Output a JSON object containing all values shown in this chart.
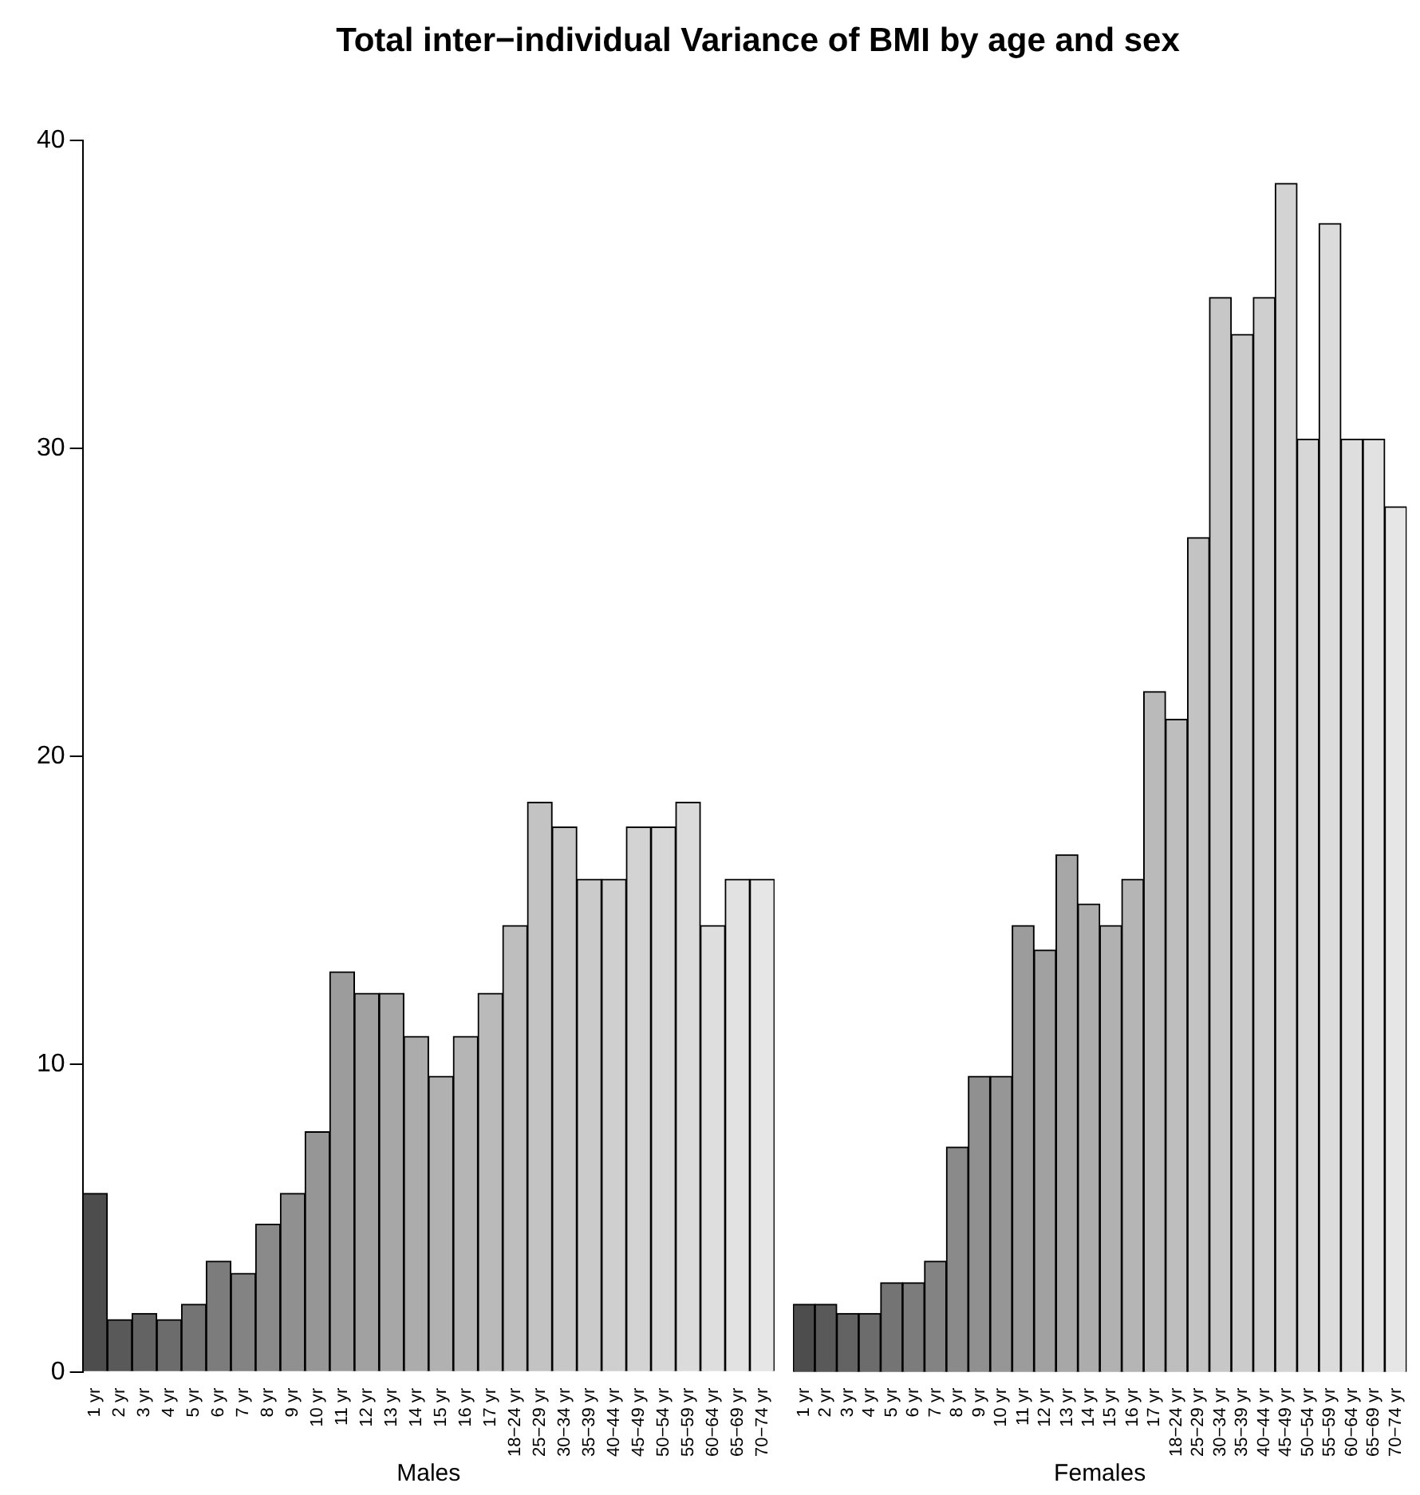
{
  "chart_data": [
    {
      "type": "bar",
      "title": "Total inter−individual Variance of BMI by age and sex",
      "xlabel": "Males",
      "categories": [
        "1 yr",
        "2 yr",
        "3 yr",
        "4 yr",
        "5 yr",
        "6 yr",
        "7 yr",
        "8 yr",
        "9 yr",
        "10 yr",
        "11 yr",
        "12 yr",
        "13 yr",
        "14 yr",
        "15 yr",
        "16 yr",
        "17 yr",
        "18−24 yr",
        "25−29 yr",
        "30−34 yr",
        "35−39 yr",
        "40−44 yr",
        "45−49 yr",
        "50−54 yr",
        "55−59 yr",
        "60−64 yr",
        "65−69 yr",
        "70−74 yr"
      ],
      "values": [
        5.8,
        1.7,
        1.9,
        1.7,
        2.2,
        3.6,
        3.2,
        4.8,
        5.8,
        7.8,
        13.0,
        12.3,
        12.3,
        10.9,
        9.6,
        10.9,
        12.3,
        14.5,
        18.5,
        17.7,
        16.0,
        16.0,
        17.7,
        17.7,
        18.5,
        14.5,
        16.0,
        16.0
      ],
      "colors": [
        "#4d4d4d",
        "#595959",
        "#636363",
        "#6c6c6c",
        "#747474",
        "#7c7c7c",
        "#838383",
        "#8a8a8a",
        "#909090",
        "#969696",
        "#9c9c9c",
        "#a1a1a1",
        "#a7a7a7",
        "#acacac",
        "#b1b1b1",
        "#b5b5b5",
        "#bababa",
        "#bebebe",
        "#c3c3c3",
        "#c7c7c7",
        "#cbcbcb",
        "#cfcfcf",
        "#d3d3d3",
        "#d7d7d7",
        "#dbdbdb",
        "#dedede",
        "#e2e2e2",
        "#e6e6e6"
      ],
      "ylim": [
        0,
        40
      ],
      "yticks": [
        0,
        10,
        20,
        30,
        40
      ]
    },
    {
      "type": "bar",
      "xlabel": "Females",
      "categories": [
        "1 yr",
        "2 yr",
        "3 yr",
        "4 yr",
        "5 yr",
        "6 yr",
        "7 yr",
        "8 yr",
        "9 yr",
        "10 yr",
        "11 yr",
        "12 yr",
        "13 yr",
        "14 yr",
        "15 yr",
        "16 yr",
        "17 yr",
        "18−24 yr",
        "25−29 yr",
        "30−34 yr",
        "35−39 yr",
        "40−44 yr",
        "45−49 yr",
        "50−54 yr",
        "55−59 yr",
        "60−64 yr",
        "65−69 yr",
        "70−74 yr"
      ],
      "values": [
        2.2,
        2.2,
        1.9,
        1.9,
        2.9,
        2.9,
        3.6,
        7.3,
        9.6,
        9.6,
        14.5,
        13.7,
        16.8,
        15.2,
        14.5,
        16.0,
        22.1,
        21.2,
        27.1,
        34.9,
        33.7,
        34.9,
        38.6,
        30.3,
        37.3,
        30.3,
        30.3,
        28.1
      ],
      "colors": [
        "#4d4d4d",
        "#595959",
        "#636363",
        "#6c6c6c",
        "#747474",
        "#7c7c7c",
        "#838383",
        "#8a8a8a",
        "#909090",
        "#969696",
        "#9c9c9c",
        "#a1a1a1",
        "#a7a7a7",
        "#acacac",
        "#b1b1b1",
        "#b5b5b5",
        "#bababa",
        "#bebebe",
        "#c3c3c3",
        "#c7c7c7",
        "#cbcbcb",
        "#cfcfcf",
        "#d3d3d3",
        "#d7d7d7",
        "#dbdbdb",
        "#dedede",
        "#e2e2e2",
        "#e6e6e6"
      ],
      "ylim": [
        0,
        40
      ],
      "yticks": [
        0,
        10,
        20,
        30,
        40
      ],
      "tick_labels": "x"
    }
  ]
}
